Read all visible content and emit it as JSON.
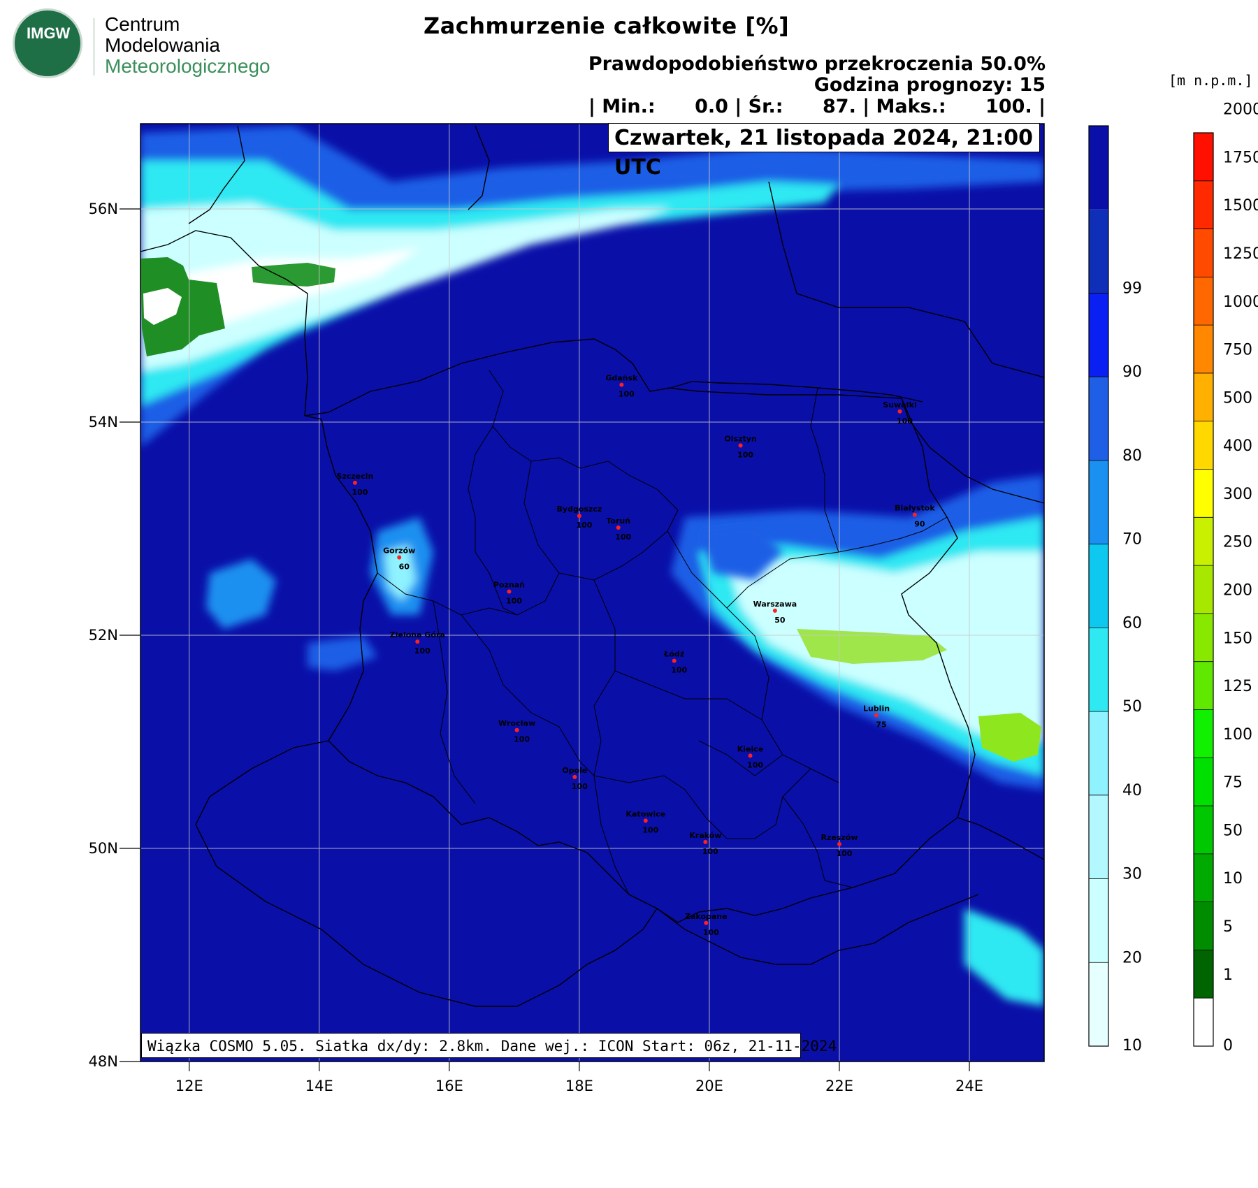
{
  "logo": {
    "mark": "IMGW",
    "lines": [
      "Centrum",
      "Modelowania",
      "Meteorologicznego"
    ]
  },
  "title": "Zachmurzenie całkowite [%]",
  "subtitle_probability": "Prawdopodobieństwo przekroczenia 50.0%",
  "subtitle_hour": "Godzina prognozy: 15",
  "stats": {
    "min_label": "| Min.:",
    "min_value": "0.0",
    "mean_label": "| Śr.:",
    "mean_value": "87.",
    "max_label": "| Maks.:",
    "max_value": "100.",
    "end": "|"
  },
  "date_label": "Czwartek, 21 listopada 2024, 21:00 UTC",
  "units_label": "[m n.p.m.]",
  "info_text": "Wiązka COSMO 5.05. Siatka dx/dy: 2.8km. Dane wej.: ICON Start: 06z, 21-11-2024",
  "map": {
    "lat_ticks": [
      "56N",
      "54N",
      "52N",
      "50N",
      "48N"
    ],
    "lon_ticks": [
      "12E",
      "14E",
      "16E",
      "18E",
      "20E",
      "22E",
      "24E"
    ],
    "lat_range": [
      48,
      56.8
    ],
    "lon_range": [
      11.25,
      25.15
    ],
    "background_color": "#0a0fa8",
    "cities": [
      {
        "name": "Gdańsk",
        "value": "100",
        "lon": 18.65,
        "lat": 54.35
      },
      {
        "name": "Suwałki",
        "value": "100",
        "lon": 22.93,
        "lat": 54.1
      },
      {
        "name": "Olsztyn",
        "value": "100",
        "lon": 20.48,
        "lat": 53.78
      },
      {
        "name": "Szczecin",
        "value": "100",
        "lon": 14.55,
        "lat": 53.43
      },
      {
        "name": "Bydgoszcz",
        "value": "100",
        "lon": 18.0,
        "lat": 53.12
      },
      {
        "name": "Toruń",
        "value": "100",
        "lon": 18.6,
        "lat": 53.01
      },
      {
        "name": "Białystok",
        "value": "90",
        "lon": 23.16,
        "lat": 53.13
      },
      {
        "name": "Gorzów",
        "value": "60",
        "lon": 15.23,
        "lat": 52.73
      },
      {
        "name": "Poznań",
        "value": "100",
        "lon": 16.92,
        "lat": 52.41
      },
      {
        "name": "Warszawa",
        "value": "50",
        "lon": 21.01,
        "lat": 52.23
      },
      {
        "name": "Zielona Góra",
        "value": "100",
        "lon": 15.51,
        "lat": 51.94
      },
      {
        "name": "Łódź",
        "value": "100",
        "lon": 19.46,
        "lat": 51.76
      },
      {
        "name": "Lublin",
        "value": "75",
        "lon": 22.57,
        "lat": 51.25
      },
      {
        "name": "Wrocław",
        "value": "100",
        "lon": 17.04,
        "lat": 51.11
      },
      {
        "name": "Kielce",
        "value": "100",
        "lon": 20.63,
        "lat": 50.87
      },
      {
        "name": "Opole",
        "value": "100",
        "lon": 17.93,
        "lat": 50.67
      },
      {
        "name": "Katowice",
        "value": "100",
        "lon": 19.02,
        "lat": 50.26
      },
      {
        "name": "Kraków",
        "value": "100",
        "lon": 19.94,
        "lat": 50.06
      },
      {
        "name": "Rzeszów",
        "value": "100",
        "lon": 22.0,
        "lat": 50.04
      },
      {
        "name": "Zakopane",
        "value": "100",
        "lon": 19.95,
        "lat": 49.3
      }
    ]
  },
  "cloud_colorbar": {
    "labels": [
      "10",
      "20",
      "30",
      "40",
      "50",
      "60",
      "70",
      "80",
      "90",
      "99"
    ],
    "colors": [
      "#e6ffff",
      "#ccffff",
      "#b3f7ff",
      "#8ff2ff",
      "#2ee8f2",
      "#0fc8f0",
      "#1a90f0",
      "#1f5fe6",
      "#0a1ff2",
      "#0f2fb8",
      "#0a0fa8"
    ]
  },
  "terrain_colorbar": {
    "labels": [
      "0",
      "1",
      "5",
      "10",
      "50",
      "75",
      "100",
      "125",
      "150",
      "200",
      "250",
      "300",
      "400",
      "500",
      "750",
      "1000",
      "1250",
      "1500",
      "1750",
      "2000"
    ],
    "colors": [
      "#ffffff",
      "#006400",
      "#008c00",
      "#00aa00",
      "#00c800",
      "#00e000",
      "#10f000",
      "#60e800",
      "#88e800",
      "#a8e800",
      "#c8f000",
      "#ffff00",
      "#ffd800",
      "#ffb000",
      "#ff8800",
      "#ff6800",
      "#ff4a00",
      "#ff2a00",
      "#ff1000"
    ]
  }
}
